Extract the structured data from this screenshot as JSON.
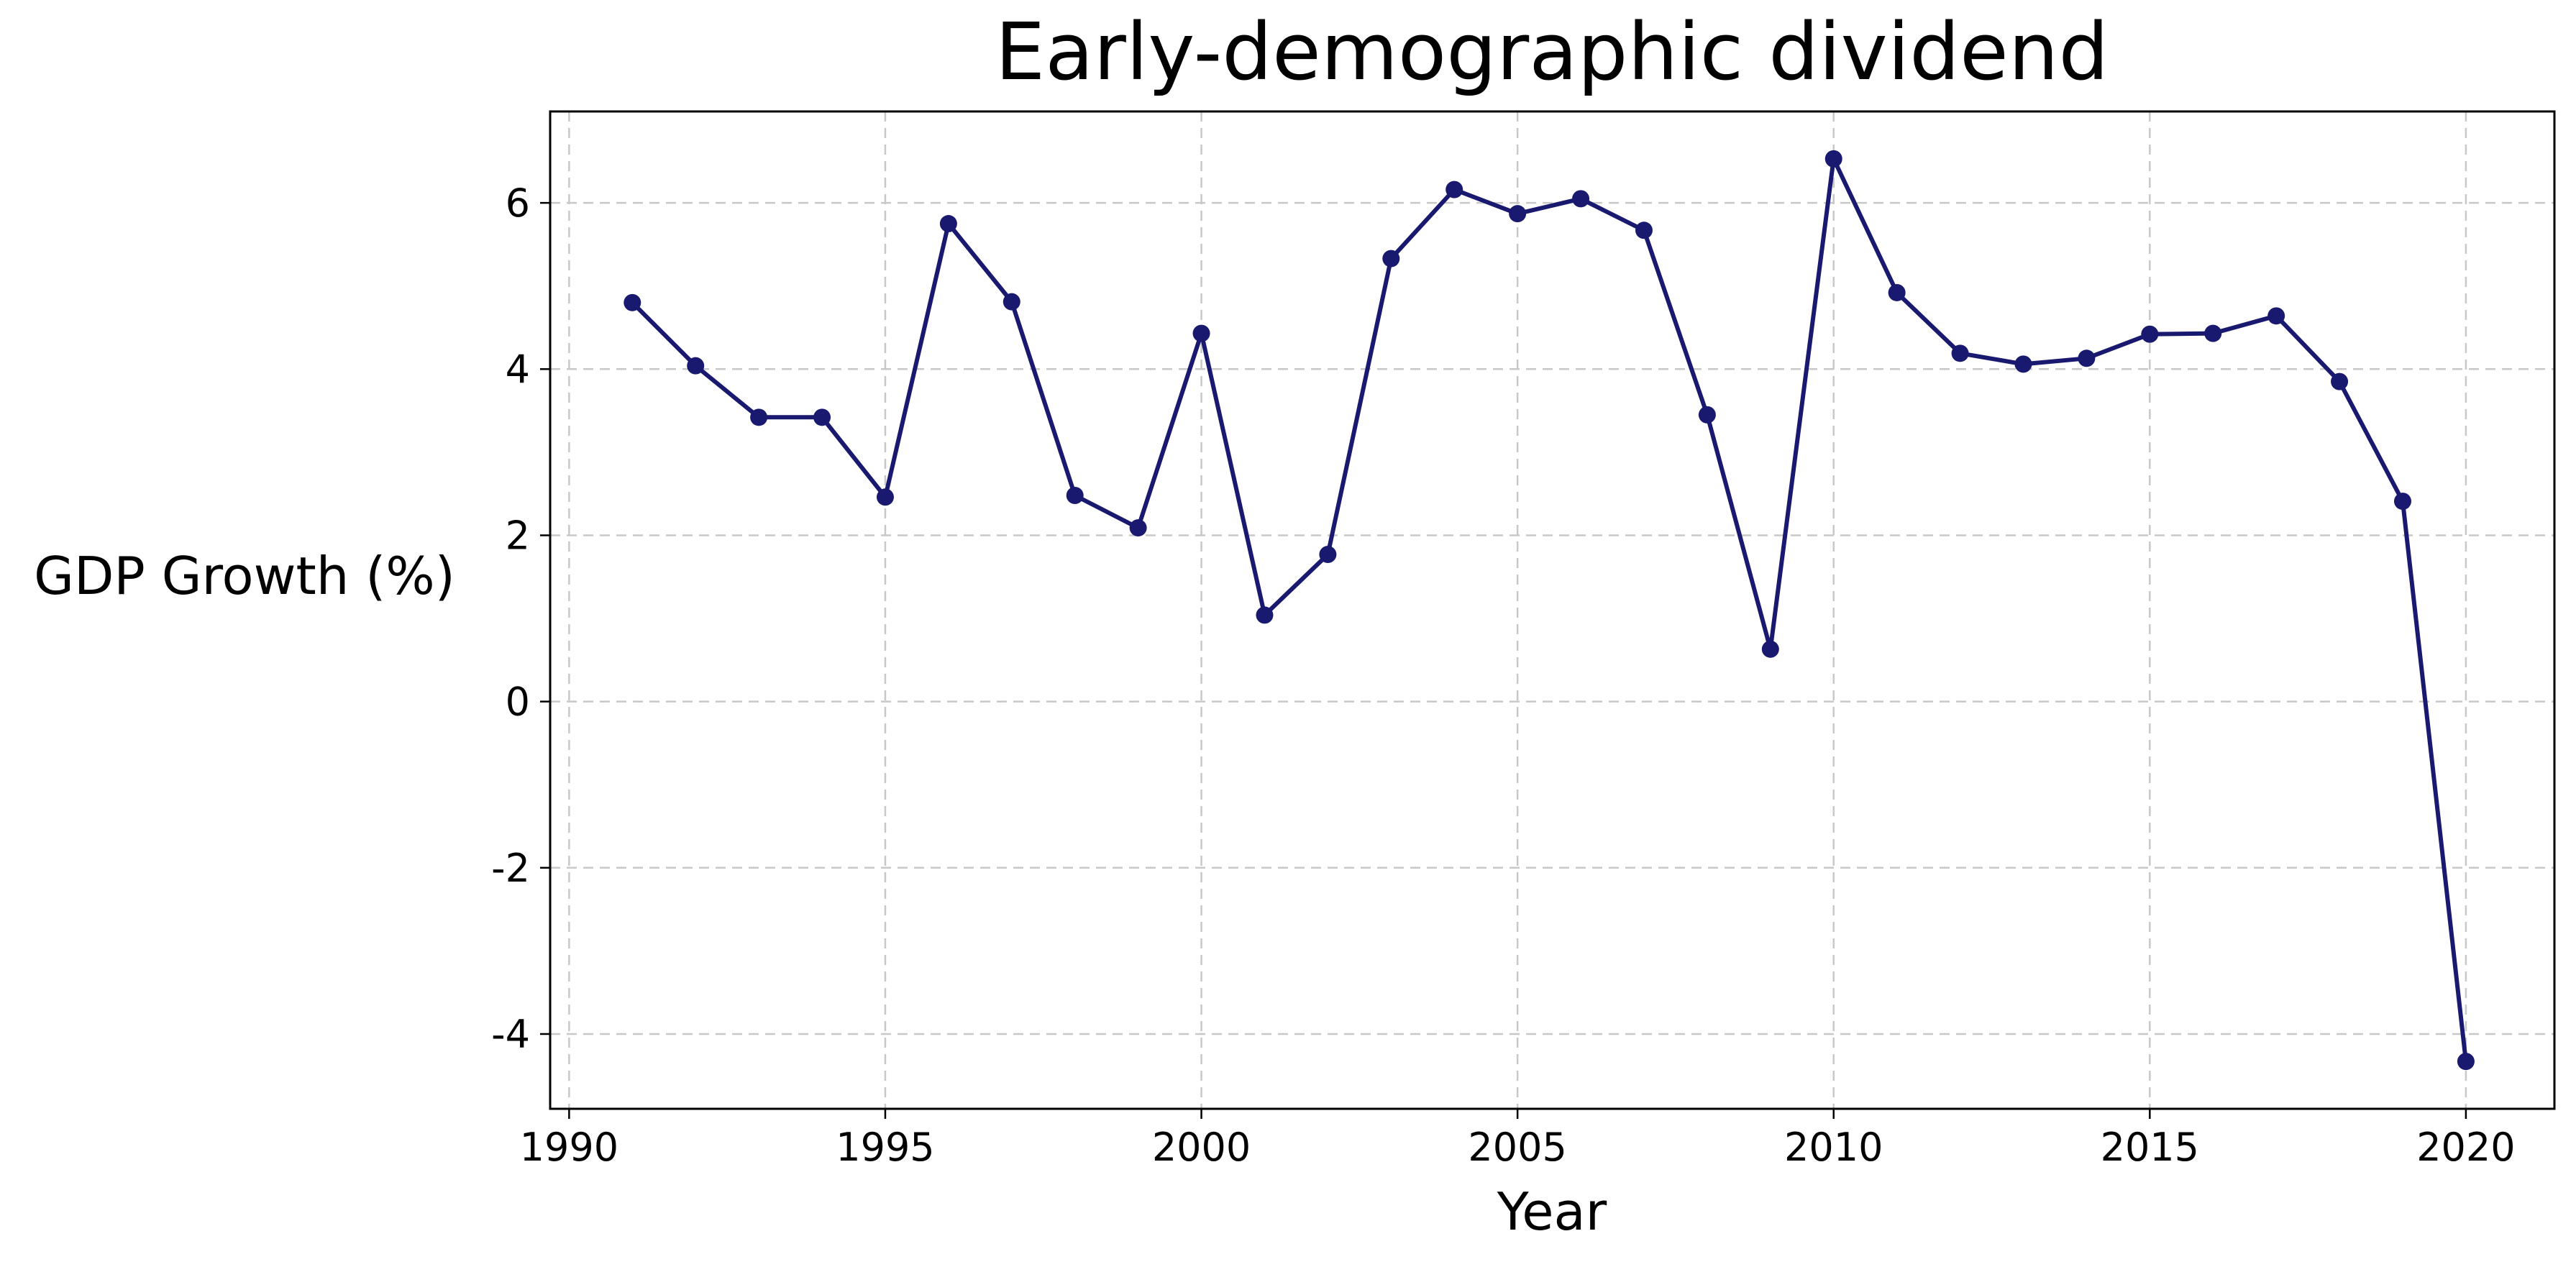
{
  "chart_data": {
    "type": "line",
    "title": "Early-demographic dividend",
    "xlabel": "Year",
    "ylabel": "GDP Growth (%)",
    "xlim": [
      1989.7,
      2021.4
    ],
    "ylim": [
      -4.9,
      7.1
    ],
    "grid": true,
    "x_ticks": [
      1990,
      1995,
      2000,
      2005,
      2010,
      2015,
      2020
    ],
    "y_ticks": [
      -4,
      -2,
      0,
      2,
      4,
      6
    ],
    "x_tick_labels": [
      "1990",
      "1995",
      "2000",
      "2005",
      "2010",
      "2015",
      "2020"
    ],
    "y_tick_labels": [
      "-4",
      "-2",
      "0",
      "2",
      "4",
      "6"
    ],
    "series": [
      {
        "color": "#191970",
        "marker": "circle",
        "x": [
          1991,
          1992,
          1993,
          1994,
          1995,
          1996,
          1997,
          1998,
          1999,
          2000,
          2001,
          2002,
          2003,
          2004,
          2005,
          2006,
          2007,
          2008,
          2009,
          2010,
          2011,
          2012,
          2013,
          2014,
          2015,
          2016,
          2017,
          2018,
          2019,
          2020
        ],
        "y": [
          4.8,
          4.04,
          3.42,
          3.42,
          2.46,
          5.75,
          4.81,
          2.48,
          2.09,
          4.43,
          1.04,
          1.77,
          5.33,
          6.16,
          5.87,
          6.05,
          5.67,
          3.45,
          0.63,
          6.53,
          4.92,
          4.19,
          4.06,
          4.13,
          4.42,
          4.43,
          4.64,
          3.85,
          2.41,
          -4.33
        ]
      }
    ]
  }
}
